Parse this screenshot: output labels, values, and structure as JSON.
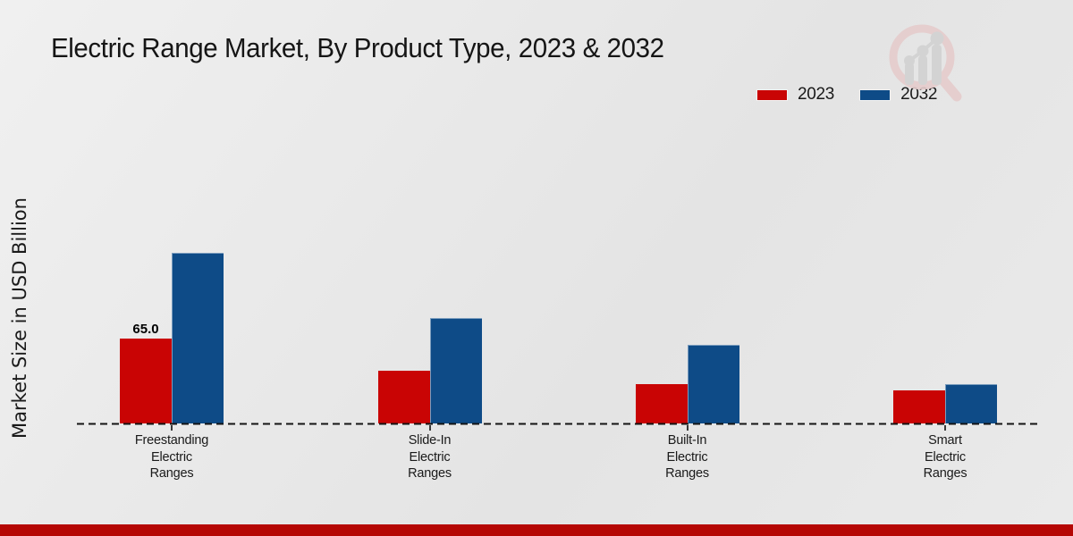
{
  "page": {
    "title": "Electric Range Market, By Product Type, 2023 & 2032",
    "watermark_icon": "magnifier-growth-chart-logo"
  },
  "chart_data": {
    "type": "bar",
    "title": "Electric Range Market, By Product Type, 2023 & 2032",
    "xlabel": "",
    "ylabel": "Market Size in USD Billion",
    "categories": [
      "Freestanding Electric Ranges",
      "Slide-In Electric Ranges",
      "Built-In Electric Ranges",
      "Smart Electric Ranges"
    ],
    "category_label_lines": [
      [
        "Freestanding",
        "Electric",
        "Ranges"
      ],
      [
        "Slide-In",
        "Electric",
        "Ranges"
      ],
      [
        "Built-In",
        "Electric",
        "Ranges"
      ],
      [
        "Smart",
        "Electric",
        "Ranges"
      ]
    ],
    "series": [
      {
        "name": "2023",
        "color": "#c90404",
        "values": [
          65,
          40,
          30,
          25
        ]
      },
      {
        "name": "2032",
        "color": "#0e4b87",
        "values": [
          130,
          80,
          60,
          30
        ]
      }
    ],
    "data_labels": [
      {
        "series": "2023",
        "category": "Freestanding Electric Ranges",
        "text": "65.0"
      }
    ],
    "ylim": [
      0,
      140
    ],
    "grid": false,
    "y_axis_ticks_visible": false,
    "legend_position": "top-right",
    "baseline_style": "dashed"
  },
  "colors": {
    "accent_red": "#c90404",
    "accent_blue": "#0e4b87",
    "footer_red": "#b50704",
    "background": "#e9e9e9",
    "axis_line": "#141414",
    "watermark_ring": "#e5cccc",
    "watermark_gray": "#d2d2d2"
  }
}
